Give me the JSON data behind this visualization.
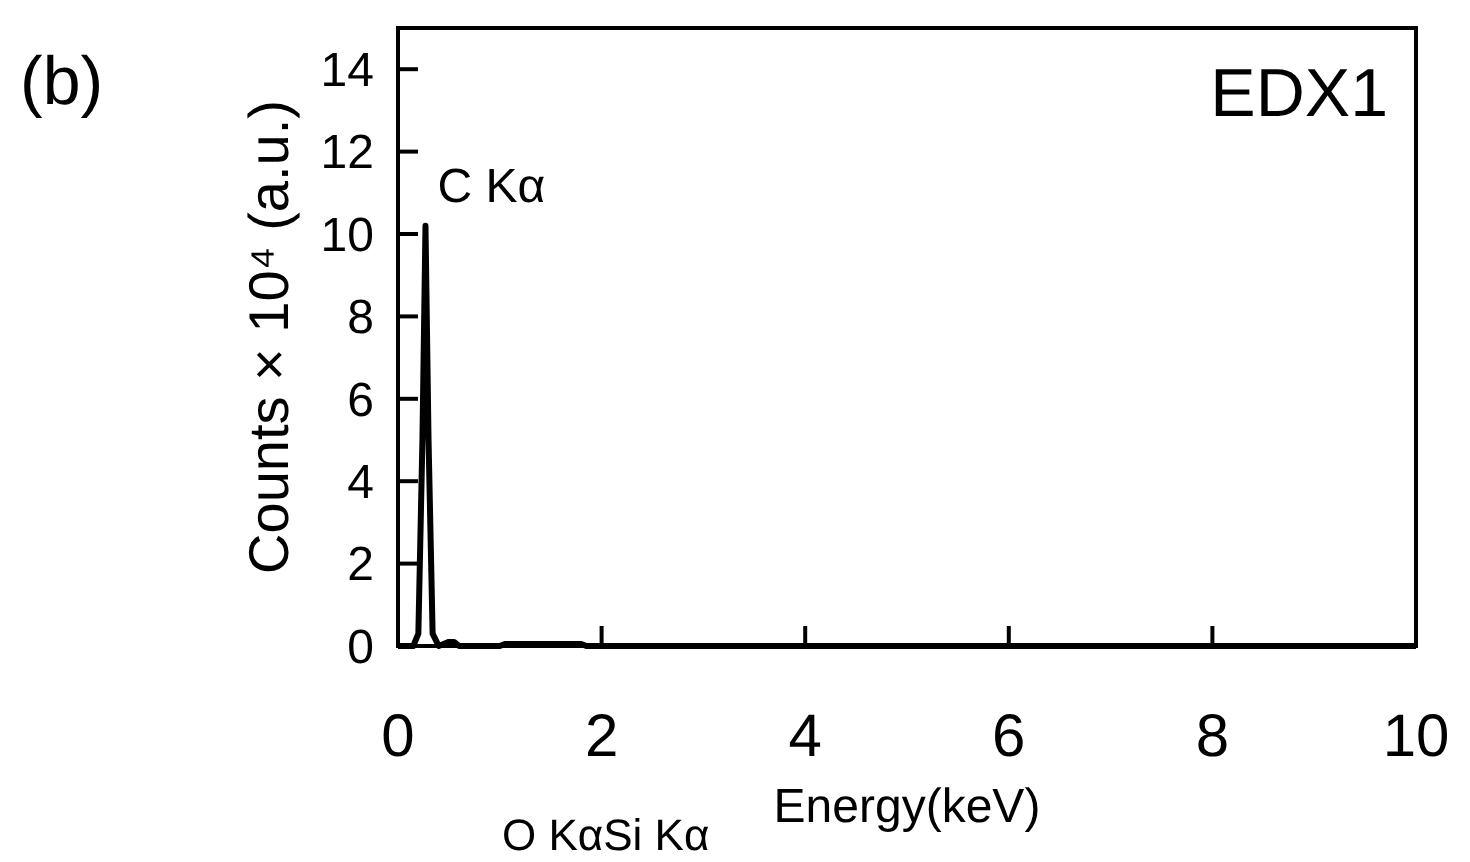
{
  "chart_data": {
    "type": "line",
    "title": "EDX1",
    "xlabel": "Energy(keV)",
    "ylabel": "Counts × 10⁴ (a.u.)",
    "x": [
      0,
      0.15,
      0.2,
      0.24,
      0.27,
      0.3,
      0.34,
      0.4,
      0.5,
      0.55,
      0.6,
      1.0,
      1.05,
      1.5,
      1.8,
      1.85,
      2,
      10
    ],
    "series": [
      {
        "color": "#000000",
        "values": [
          0,
          0,
          0.3,
          5,
          10.2,
          5,
          0.3,
          0,
          0.1,
          0.1,
          0,
          0,
          0.05,
          0.05,
          0.05,
          0,
          0,
          0
        ]
      }
    ],
    "xlim": [
      0,
      10
    ],
    "xticks": [
      0,
      2,
      4,
      6,
      8,
      10
    ],
    "ylim": [
      0,
      15
    ],
    "yticks": [
      0,
      2,
      4,
      6,
      8,
      10,
      12,
      14
    ],
    "annotations": [
      "(b)",
      {
        "text": "C Kα",
        "x": 0.27,
        "y": 10.2
      },
      "O KαSi Kα"
    ],
    "grid": false,
    "marker": "none",
    "line_style": "solid"
  }
}
